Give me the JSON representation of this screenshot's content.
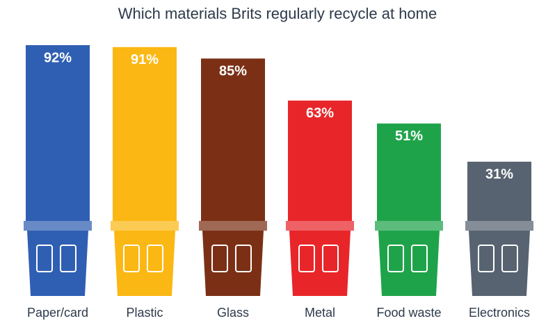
{
  "chart_data": {
    "type": "bar",
    "title": "Which materials Brits regularly recycle at home",
    "categories": [
      "Paper/card",
      "Plastic",
      "Glass",
      "Metal",
      "Food waste",
      "Electronics"
    ],
    "values": [
      92,
      91,
      85,
      63,
      51,
      31
    ],
    "value_labels": [
      "92%",
      "91%",
      "85%",
      "63%",
      "51%",
      "31%"
    ],
    "colors": [
      "#2f5fb3",
      "#fbb713",
      "#7b3016",
      "#e8262a",
      "#1fa34a",
      "#576371"
    ]
  }
}
